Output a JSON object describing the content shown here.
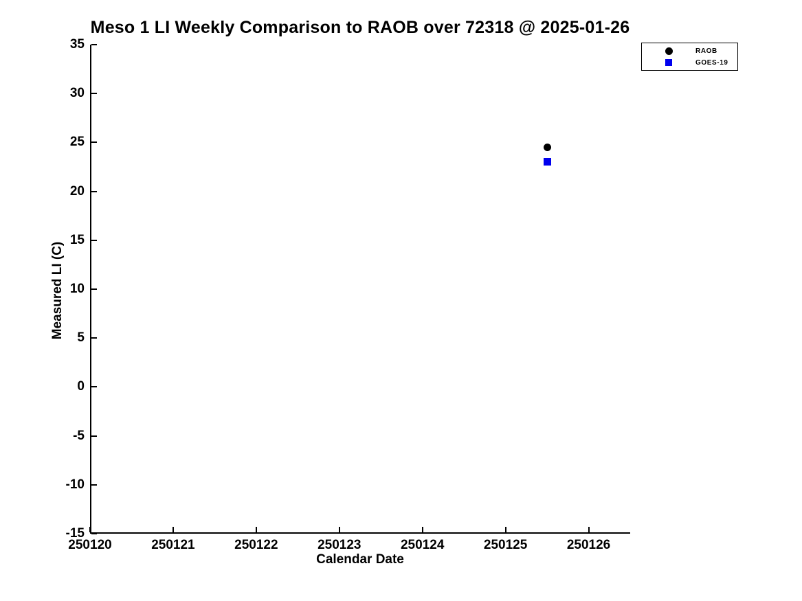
{
  "figure": {
    "background": "#ffffff",
    "text_color": "#000000"
  },
  "chart_data": {
    "type": "scatter",
    "title": "Meso 1 LI Weekly Comparison to RAOB over 72318 @ 2025-01-26",
    "xlabel": "Calendar Date",
    "ylabel": "Measured LI (C)",
    "xlim": [
      250120,
      250126.5
    ],
    "ylim": [
      -15,
      35
    ],
    "grid": false,
    "x_ticks": [
      250120,
      250121,
      250122,
      250123,
      250124,
      250125,
      250126
    ],
    "x_tick_labels": [
      "250120",
      "250121",
      "250122",
      "250123",
      "250124",
      "250125",
      "250126"
    ],
    "y_ticks": [
      35,
      30,
      25,
      20,
      15,
      10,
      5,
      0,
      -5,
      -10,
      -15
    ],
    "y_tick_labels": [
      "35",
      "30",
      "25",
      "20",
      "15",
      "10",
      "5",
      "0",
      "-5",
      "-10",
      "-15"
    ],
    "legend": {
      "position": "northeast-outside",
      "entries": [
        {
          "label": "RAOB",
          "marker": "circle",
          "color": "#000000"
        },
        {
          "label": "GOES-19",
          "marker": "square",
          "color": "#0000ee"
        }
      ]
    },
    "series": [
      {
        "name": "RAOB",
        "marker": "circle",
        "color": "#000000",
        "points": [
          {
            "x": 250125.5,
            "y": 24.5
          }
        ]
      },
      {
        "name": "GOES-19",
        "marker": "square",
        "color": "#0000ee",
        "points": [
          {
            "x": 250125.5,
            "y": 23.0
          }
        ]
      }
    ]
  }
}
